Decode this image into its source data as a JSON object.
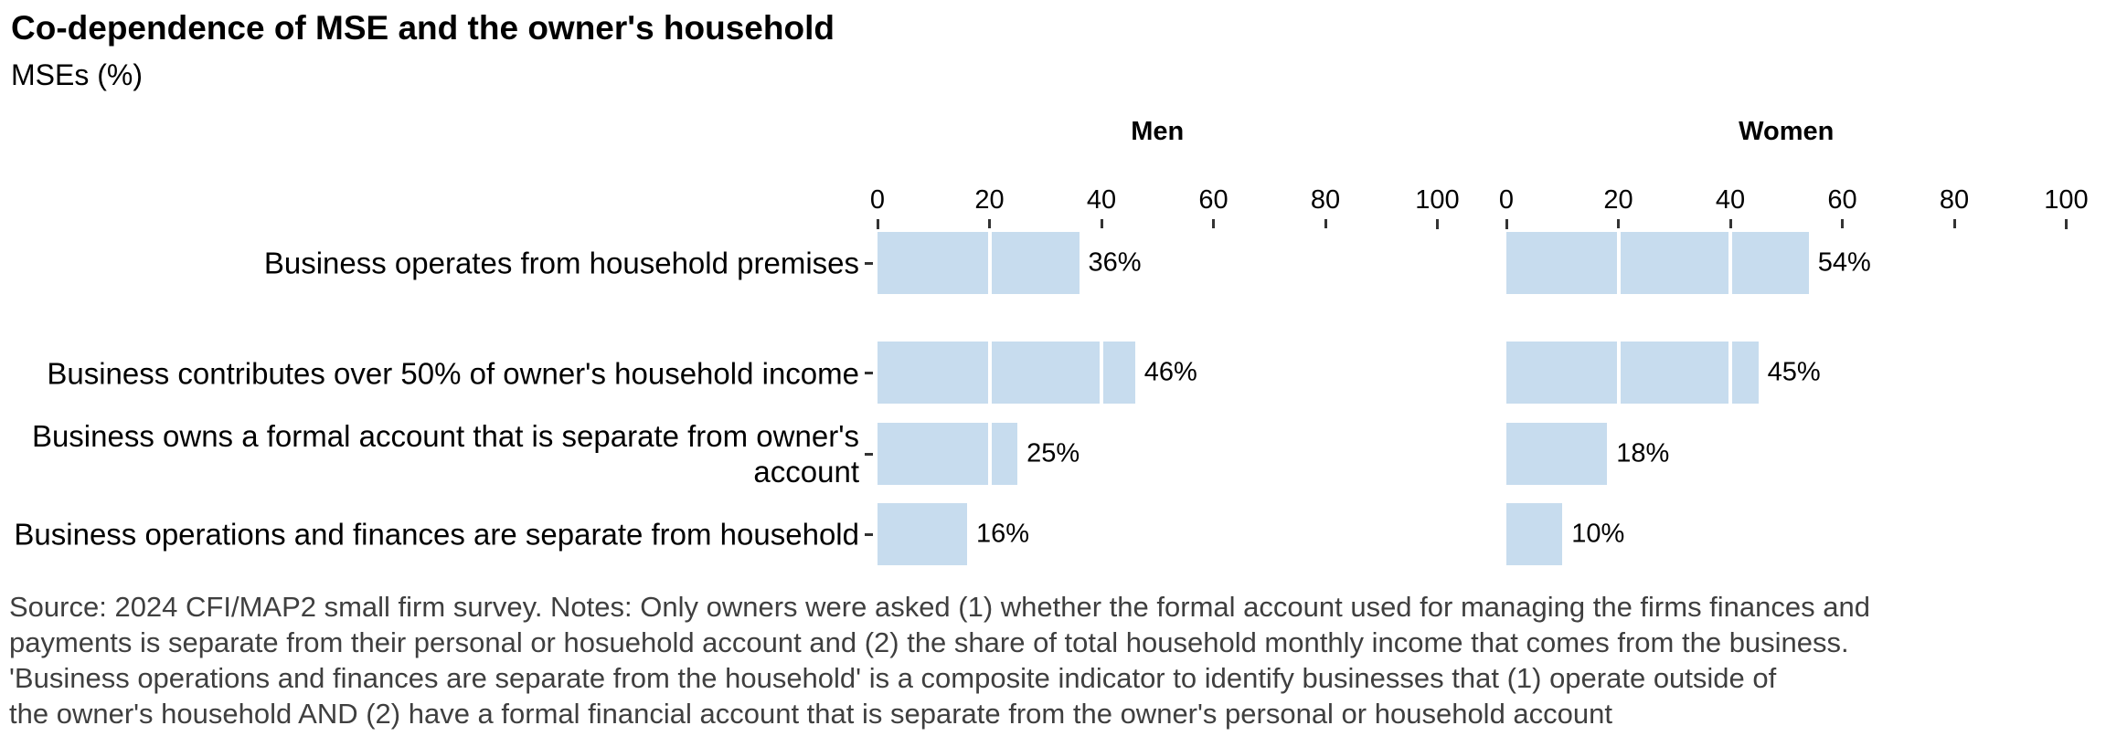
{
  "header": {
    "title": "Co-dependence of MSE and the owner's household",
    "subtitle": "MSEs (%)"
  },
  "chart_data": {
    "type": "bar",
    "orientation": "horizontal",
    "facets": [
      "Men",
      "Women"
    ],
    "categories": [
      "Business operates from household premises",
      "Business contributes over 50% of owner's household income",
      "Business owns a formal account that is separate from owner's account",
      "Business operations and finances are separate from household"
    ],
    "series": [
      {
        "name": "Men",
        "values": [
          36,
          46,
          25,
          16
        ],
        "labels": [
          "36%",
          "46%",
          "25%",
          "16%"
        ]
      },
      {
        "name": "Women",
        "values": [
          54,
          45,
          18,
          10
        ],
        "labels": [
          "54%",
          "45%",
          "18%",
          "10%"
        ]
      }
    ],
    "xlim": [
      0,
      100
    ],
    "xticks": [
      0,
      20,
      40,
      60,
      80,
      100
    ],
    "xlabel": "",
    "ylabel": "",
    "legend": "none",
    "grid": "white vertical gridlines drawn over bars at each x tick",
    "bar_color": "#c7dcee",
    "tick_color": "#333333",
    "footnote_color": "#3f3f3f"
  },
  "footnote": {
    "lines": [
      "Source: 2024 CFI/MAP2 small firm survey. Notes: Only owners were asked (1) whether the formal account used for managing the firms finances and",
      "payments is separate from their personal or hosuehold account and (2) the share of total household monthly income that comes from the business.",
      "'Business operations and finances are separate from the household' is a composite indicator to identify businesses that (1) operate outside of",
      "the owner's household AND (2) have a formal financial account that is separate from the owner's personal or household account"
    ]
  }
}
